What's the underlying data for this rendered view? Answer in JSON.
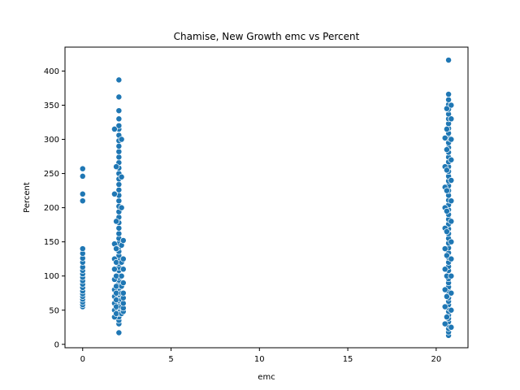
{
  "chart_data": {
    "type": "scatter",
    "title": "Chamise, New Growth emc vs Percent",
    "xlabel": "emc",
    "ylabel": "Percent",
    "xlim": [
      -1.0,
      21.8
    ],
    "ylim": [
      -5,
      435
    ],
    "xticks": [
      0,
      5,
      10,
      15,
      20
    ],
    "yticks": [
      0,
      50,
      100,
      150,
      200,
      250,
      300,
      350,
      400
    ],
    "grid": false,
    "legend": "none",
    "marker_color": "#1f77b4",
    "series": [
      {
        "points": [
          [
            0.0,
            55
          ],
          [
            0.0,
            58
          ],
          [
            0.0,
            62
          ],
          [
            0.0,
            66
          ],
          [
            0.0,
            70
          ],
          [
            0.0,
            74
          ],
          [
            0.0,
            78
          ],
          [
            0.0,
            83
          ],
          [
            0.0,
            88
          ],
          [
            0.0,
            93
          ],
          [
            0.0,
            98
          ],
          [
            0.0,
            103
          ],
          [
            0.0,
            108
          ],
          [
            0.0,
            113
          ],
          [
            0.0,
            120
          ],
          [
            0.0,
            126
          ],
          [
            0.0,
            133
          ],
          [
            0.0,
            140
          ],
          [
            0.0,
            210
          ],
          [
            0.0,
            220
          ],
          [
            0.0,
            246
          ],
          [
            0.0,
            257
          ],
          [
            2.05,
            17
          ],
          [
            2.05,
            30
          ],
          [
            2.05,
            35
          ],
          [
            2.05,
            40
          ],
          [
            2.05,
            45
          ],
          [
            2.05,
            48
          ],
          [
            2.05,
            52
          ],
          [
            2.05,
            55
          ],
          [
            2.05,
            58
          ],
          [
            2.05,
            61
          ],
          [
            2.05,
            64
          ],
          [
            2.05,
            67
          ],
          [
            2.05,
            70
          ],
          [
            2.05,
            73
          ],
          [
            2.05,
            76
          ],
          [
            2.05,
            79
          ],
          [
            2.05,
            82
          ],
          [
            2.05,
            86
          ],
          [
            2.05,
            90
          ],
          [
            2.05,
            94
          ],
          [
            2.05,
            98
          ],
          [
            2.05,
            103
          ],
          [
            2.05,
            108
          ],
          [
            2.05,
            113
          ],
          [
            2.05,
            118
          ],
          [
            2.05,
            124
          ],
          [
            2.05,
            130
          ],
          [
            2.05,
            136
          ],
          [
            2.05,
            142
          ],
          [
            2.05,
            148
          ],
          [
            2.05,
            155
          ],
          [
            2.05,
            162
          ],
          [
            2.05,
            170
          ],
          [
            2.05,
            178
          ],
          [
            2.05,
            186
          ],
          [
            2.05,
            194
          ],
          [
            2.05,
            202
          ],
          [
            2.05,
            210
          ],
          [
            2.05,
            218
          ],
          [
            2.05,
            226
          ],
          [
            2.05,
            234
          ],
          [
            2.05,
            242
          ],
          [
            2.05,
            250
          ],
          [
            2.05,
            258
          ],
          [
            2.05,
            266
          ],
          [
            2.05,
            274
          ],
          [
            2.05,
            282
          ],
          [
            2.05,
            290
          ],
          [
            2.05,
            298
          ],
          [
            2.05,
            306
          ],
          [
            2.05,
            315
          ],
          [
            2.05,
            320
          ],
          [
            2.05,
            330
          ],
          [
            2.05,
            342
          ],
          [
            2.05,
            362
          ],
          [
            2.05,
            387
          ],
          [
            1.8,
            40
          ],
          [
            1.8,
            50
          ],
          [
            1.8,
            60
          ],
          [
            1.8,
            70
          ],
          [
            1.8,
            80
          ],
          [
            1.8,
            95
          ],
          [
            1.8,
            110
          ],
          [
            1.8,
            125
          ],
          [
            1.8,
            147
          ],
          [
            1.8,
            220
          ],
          [
            1.8,
            315
          ],
          [
            1.9,
            45
          ],
          [
            1.9,
            55
          ],
          [
            1.9,
            65
          ],
          [
            1.9,
            75
          ],
          [
            1.9,
            85
          ],
          [
            1.9,
            100
          ],
          [
            1.9,
            120
          ],
          [
            1.9,
            140
          ],
          [
            1.9,
            180
          ],
          [
            1.9,
            260
          ],
          [
            2.2,
            45
          ],
          [
            2.2,
            55
          ],
          [
            2.2,
            65
          ],
          [
            2.2,
            75
          ],
          [
            2.2,
            85
          ],
          [
            2.2,
            100
          ],
          [
            2.2,
            120
          ],
          [
            2.2,
            145
          ],
          [
            2.2,
            200
          ],
          [
            2.2,
            245
          ],
          [
            2.2,
            300
          ],
          [
            2.3,
            48
          ],
          [
            2.3,
            53
          ],
          [
            2.3,
            60
          ],
          [
            2.3,
            68
          ],
          [
            2.3,
            75
          ],
          [
            2.3,
            90
          ],
          [
            2.3,
            110
          ],
          [
            2.3,
            125
          ],
          [
            2.3,
            152
          ],
          [
            20.7,
            13
          ],
          [
            20.7,
            18
          ],
          [
            20.7,
            23
          ],
          [
            20.7,
            28
          ],
          [
            20.7,
            33
          ],
          [
            20.7,
            38
          ],
          [
            20.7,
            43
          ],
          [
            20.7,
            48
          ],
          [
            20.7,
            53
          ],
          [
            20.7,
            58
          ],
          [
            20.7,
            63
          ],
          [
            20.7,
            68
          ],
          [
            20.7,
            73
          ],
          [
            20.7,
            78
          ],
          [
            20.7,
            84
          ],
          [
            20.7,
            90
          ],
          [
            20.7,
            96
          ],
          [
            20.7,
            102
          ],
          [
            20.7,
            108
          ],
          [
            20.7,
            114
          ],
          [
            20.7,
            120
          ],
          [
            20.7,
            127
          ],
          [
            20.7,
            134
          ],
          [
            20.7,
            141
          ],
          [
            20.7,
            148
          ],
          [
            20.7,
            155
          ],
          [
            20.7,
            162
          ],
          [
            20.7,
            169
          ],
          [
            20.7,
            176
          ],
          [
            20.7,
            183
          ],
          [
            20.7,
            190
          ],
          [
            20.7,
            197
          ],
          [
            20.7,
            204
          ],
          [
            20.7,
            211
          ],
          [
            20.7,
            218
          ],
          [
            20.7,
            225
          ],
          [
            20.7,
            232
          ],
          [
            20.7,
            239
          ],
          [
            20.7,
            246
          ],
          [
            20.7,
            253
          ],
          [
            20.7,
            260
          ],
          [
            20.7,
            267
          ],
          [
            20.7,
            274
          ],
          [
            20.7,
            281
          ],
          [
            20.7,
            288
          ],
          [
            20.7,
            295
          ],
          [
            20.7,
            302
          ],
          [
            20.7,
            309
          ],
          [
            20.7,
            316
          ],
          [
            20.7,
            323
          ],
          [
            20.7,
            330
          ],
          [
            20.7,
            337
          ],
          [
            20.7,
            344
          ],
          [
            20.7,
            351
          ],
          [
            20.7,
            358
          ],
          [
            20.7,
            366
          ],
          [
            20.7,
            416
          ],
          [
            20.5,
            30
          ],
          [
            20.5,
            55
          ],
          [
            20.5,
            80
          ],
          [
            20.5,
            110
          ],
          [
            20.5,
            140
          ],
          [
            20.5,
            170
          ],
          [
            20.5,
            200
          ],
          [
            20.5,
            230
          ],
          [
            20.5,
            260
          ],
          [
            20.5,
            302
          ],
          [
            20.6,
            40
          ],
          [
            20.6,
            70
          ],
          [
            20.6,
            100
          ],
          [
            20.6,
            130
          ],
          [
            20.6,
            165
          ],
          [
            20.6,
            195
          ],
          [
            20.6,
            225
          ],
          [
            20.6,
            255
          ],
          [
            20.6,
            285
          ],
          [
            20.6,
            315
          ],
          [
            20.6,
            345
          ],
          [
            20.85,
            25
          ],
          [
            20.85,
            50
          ],
          [
            20.85,
            75
          ],
          [
            20.85,
            100
          ],
          [
            20.85,
            125
          ],
          [
            20.85,
            150
          ],
          [
            20.85,
            180
          ],
          [
            20.85,
            210
          ],
          [
            20.85,
            240
          ],
          [
            20.85,
            270
          ],
          [
            20.85,
            300
          ],
          [
            20.85,
            330
          ],
          [
            20.85,
            350
          ]
        ]
      }
    ]
  }
}
